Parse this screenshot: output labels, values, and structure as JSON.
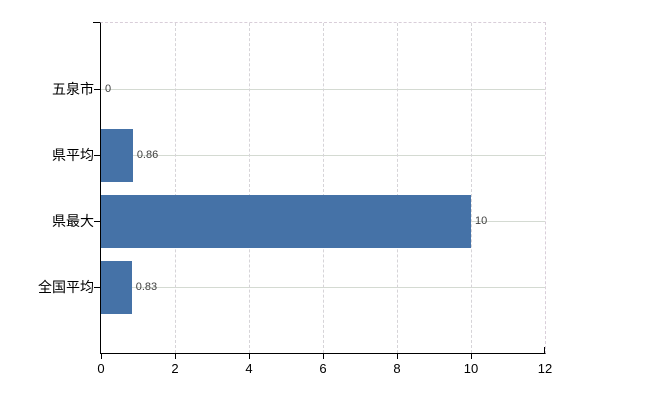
{
  "chart_data": {
    "type": "bar",
    "orientation": "horizontal",
    "title": "",
    "xlabel": "",
    "ylabel": "",
    "categories": [
      "五泉市",
      "県平均",
      "県最大",
      "全国平均"
    ],
    "values": [
      0,
      0.86,
      10,
      0.83
    ],
    "value_labels": [
      "0",
      "0.86",
      "10",
      "0.83"
    ],
    "xlim": [
      0,
      12
    ],
    "xticks": [
      0,
      2,
      4,
      6,
      8,
      10,
      12
    ],
    "xtick_labels": [
      "0",
      "2",
      "4",
      "6",
      "8",
      "10",
      "12"
    ],
    "grid": true,
    "legend": false,
    "colors": {
      "bar": "#4572a7",
      "axis": "#000000",
      "hgrid": "#d4dad2",
      "vgrid": "#d6d4d8",
      "plot_border_dashed": "#d9ced9",
      "value_label_text": "#3f3f3f",
      "tick_label_text": "#000000",
      "background": "#ffffff"
    }
  }
}
